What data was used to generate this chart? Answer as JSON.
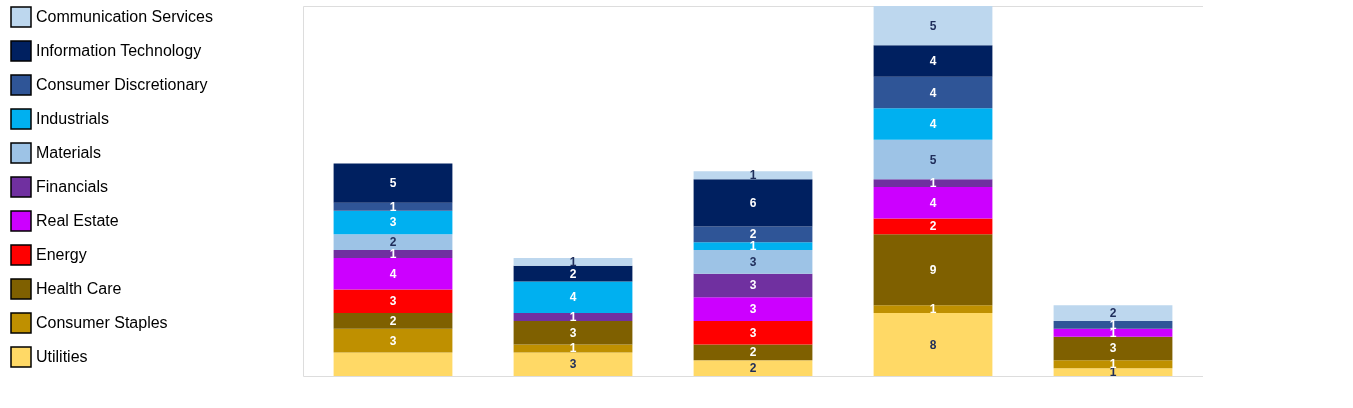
{
  "chart_data": {
    "type": "bar",
    "stacked": true,
    "legend": "left",
    "categories": [
      null,
      null,
      null,
      null,
      null
    ],
    "series": [
      {
        "name": "Utilities",
        "color": "#ffd966",
        "values": [
          3,
          3,
          2,
          8,
          1
        ],
        "value_labels": [
          null,
          "3",
          "2",
          "8",
          "1"
        ]
      },
      {
        "name": "Consumer Staples",
        "color": "#bf9000",
        "values": [
          3,
          1,
          null,
          1,
          1
        ],
        "value_labels": [
          "3",
          "1",
          null,
          "1",
          "1"
        ]
      },
      {
        "name": "Health Care",
        "color": "#7f6000",
        "values": [
          2,
          3,
          2,
          9,
          3
        ],
        "value_labels": [
          "2",
          "3",
          "2",
          "9",
          "3"
        ]
      },
      {
        "name": "Energy",
        "color": "#ff0000",
        "values": [
          3,
          null,
          3,
          2,
          null
        ],
        "value_labels": [
          "3",
          null,
          "3",
          "2",
          null
        ]
      },
      {
        "name": "Real Estate",
        "color": "#cc00ff",
        "values": [
          4,
          null,
          3,
          4,
          1
        ],
        "value_labels": [
          "4",
          null,
          "3",
          "4",
          "1"
        ]
      },
      {
        "name": "Financials",
        "color": "#7030a0",
        "values": [
          1,
          1,
          3,
          1,
          null
        ],
        "value_labels": [
          "1",
          "1",
          "3",
          "1",
          null
        ]
      },
      {
        "name": "Materials",
        "color": "#9dc3e6",
        "values": [
          2,
          null,
          3,
          5,
          null
        ],
        "value_labels": [
          "2",
          null,
          "3",
          "5",
          null
        ]
      },
      {
        "name": "Industrials",
        "color": "#00b0f0",
        "values": [
          3,
          4,
          1,
          4,
          null
        ],
        "value_labels": [
          "3",
          "4",
          "1",
          "4",
          null
        ]
      },
      {
        "name": "Consumer Discretionary",
        "color": "#2f5597",
        "values": [
          1,
          null,
          2,
          4,
          1
        ],
        "value_labels": [
          "1",
          null,
          "2",
          "4",
          "1"
        ]
      },
      {
        "name": "Information Technology",
        "color": "#002060",
        "values": [
          5,
          2,
          6,
          4,
          null
        ],
        "value_labels": [
          "5",
          "2",
          "6",
          "4",
          null
        ]
      },
      {
        "name": "Communication Services",
        "color": "#bdd7ee",
        "values": [
          null,
          1,
          1,
          5,
          2
        ],
        "value_labels": [
          null,
          "1",
          "1",
          "5",
          "2"
        ]
      }
    ]
  }
}
